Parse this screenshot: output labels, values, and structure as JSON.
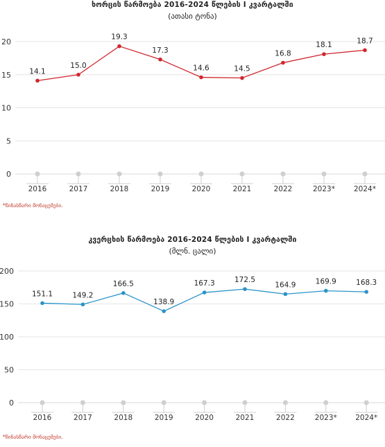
{
  "chart_data": [
    {
      "type": "line",
      "title": "ხორცის წარმოება 2016-2024 წლების I კვარტალში",
      "subtitle": "(ათასი ტონა)",
      "categories": [
        "2016",
        "2017",
        "2018",
        "2019",
        "2020",
        "2021",
        "2022",
        "2023*",
        "2024*"
      ],
      "series": [
        {
          "values": [
            14.1,
            15.0,
            19.3,
            17.3,
            14.6,
            14.5,
            16.8,
            18.1,
            18.7
          ],
          "labels": [
            "14.1",
            "15.0",
            "19.3",
            "17.3",
            "14.6",
            "14.5",
            "16.8",
            "18.1",
            "18.7"
          ]
        }
      ],
      "ylim": [
        0,
        20
      ],
      "yticks": [
        "0",
        "5",
        "10",
        "15",
        "20"
      ],
      "grid": true,
      "line_color": "#d0262e",
      "footnote": "*წინასწარი მონაცემები."
    },
    {
      "type": "line",
      "title": "კვერცხის წარმოება 2016-2024 წლების I კვარტალში",
      "subtitle": "(მლნ. ცალი)",
      "categories": [
        "2016",
        "2017",
        "2018",
        "2019",
        "2020",
        "2021",
        "2022",
        "2023*",
        "2024*"
      ],
      "series": [
        {
          "values": [
            151.1,
            149.2,
            166.5,
            138.9,
            167.3,
            172.5,
            164.9,
            169.9,
            168.3
          ],
          "labels": [
            "151.1",
            "149.2",
            "166.5",
            "138.9",
            "167.3",
            "172.5",
            "164.9",
            "169.9",
            "168.3"
          ]
        }
      ],
      "ylim": [
        0,
        200
      ],
      "yticks": [
        "0",
        "50",
        "100",
        "150",
        "200"
      ],
      "grid": true,
      "line_color": "#2a93c9",
      "footnote": "*წინასწარი მონაცემები."
    }
  ]
}
